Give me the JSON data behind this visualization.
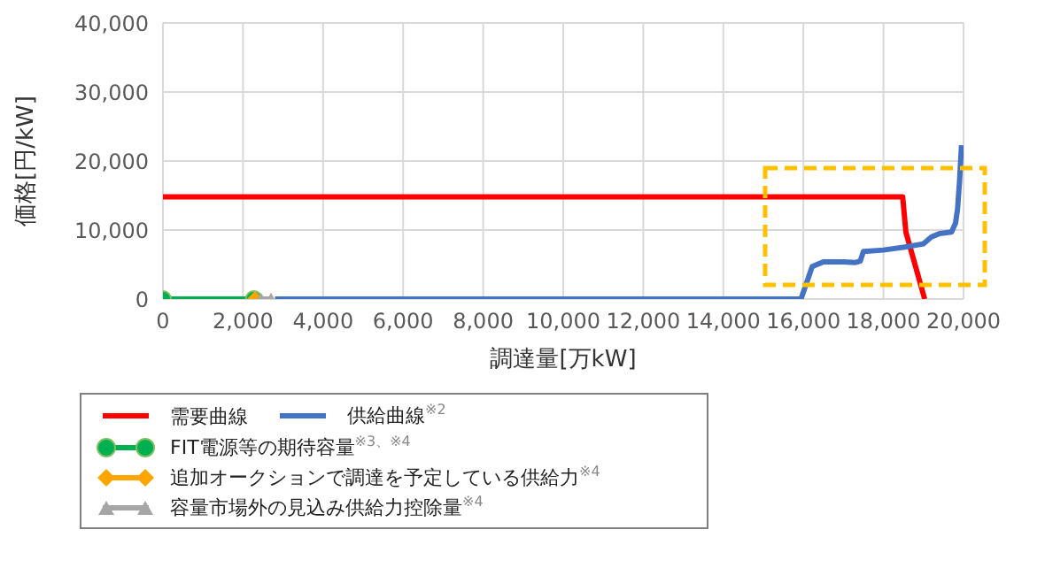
{
  "chart_data": {
    "type": "line",
    "xlabel": "調達量[万kW]",
    "ylabel": "価格[円/kW]",
    "xlim": [
      0,
      20000
    ],
    "xticks": [
      0,
      {
        "value": 2000,
        "label": "2,000"
      },
      {
        "value": 4000,
        "label": "4,000"
      },
      {
        "value": 6000,
        "label": "6,000"
      },
      {
        "value": 8000,
        "label": "8,000"
      },
      {
        "value": 10000,
        "label": "10,000"
      },
      {
        "value": 12000,
        "label": "12,000"
      },
      {
        "value": 14000,
        "label": "14,000"
      },
      {
        "value": 16000,
        "label": "16,000"
      },
      {
        "value": 18000,
        "label": "18,000"
      },
      {
        "value": 20000,
        "label": "20,000"
      }
    ],
    "ylim": [
      0,
      40000
    ],
    "yticks": [
      0,
      {
        "value": 10000,
        "label": "10,000"
      },
      {
        "value": 20000,
        "label": "20,000"
      },
      {
        "value": 30000,
        "label": "30,000"
      },
      {
        "value": 40000,
        "label": "40,000"
      }
    ],
    "grid": true,
    "legend": "bottom left",
    "line_style": "solid",
    "series": [
      {
        "name": "需要曲線",
        "color": "#ff0000",
        "marker": "none",
        "x": [
          0,
          18480,
          18560,
          19030
        ],
        "values": [
          14800,
          14800,
          9700,
          0
        ]
      },
      {
        "name": "供給曲線$^{※2}$",
        "color": "#4472c4",
        "marker": "none",
        "x": [
          2800,
          15940,
          16220,
          16500,
          17000,
          17300,
          17420,
          17500,
          18000,
          18500,
          19000,
          19200,
          19400,
          19700,
          19800,
          19850,
          19900,
          19950
        ],
        "values": [
          0,
          0,
          4700,
          5400,
          5400,
          5300,
          5500,
          6900,
          7100,
          7500,
          8000,
          9000,
          9500,
          9700,
          11000,
          13000,
          17000,
          22300
        ]
      },
      {
        "name": "FIT電源等の期待容量$^{※3、※4}$",
        "color": "#00b050",
        "marker": "circle",
        "x": [
          0,
          2270
        ],
        "values": [
          0,
          0
        ]
      },
      {
        "name": "追加オークションで調達を予定している供給力$^{※4}$",
        "color": "#ffa500",
        "marker": "diamond",
        "x": [
          2300
        ],
        "values": [
          0
        ]
      },
      {
        "name": "容量市場外の見込み供給力控除量$^{※4}$",
        "color": "#a6a6a6",
        "marker": "triangle",
        "x": [
          2450,
          2700
        ],
        "values": [
          0,
          0
        ]
      }
    ]
  }
}
